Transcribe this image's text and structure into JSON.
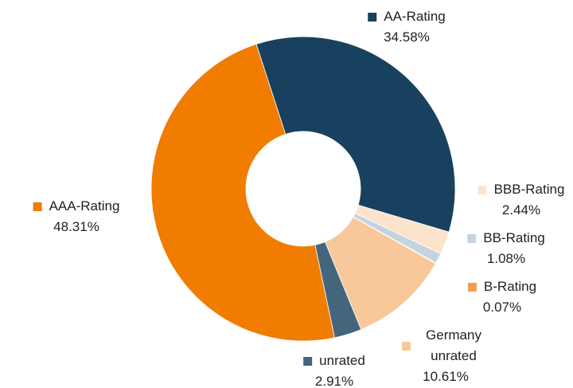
{
  "chart_data": {
    "type": "donut",
    "categories": [
      "AA-Rating",
      "BBB-Rating",
      "BB-Rating",
      "B-Rating",
      "Germany unrated",
      "unrated",
      "AAA-Rating"
    ],
    "values": [
      34.58,
      2.44,
      1.08,
      0.07,
      10.61,
      2.91,
      48.31
    ],
    "value_labels": [
      "34.58%",
      "2.44%",
      "1.08%",
      "0.07%",
      "10.61%",
      "2.91%",
      "48.31%"
    ],
    "colors": [
      "#17415e",
      "#fde3cc",
      "#c5d3e0",
      "#f0a050",
      "#f8c89a",
      "#45657c",
      "#f07c00"
    ]
  }
}
